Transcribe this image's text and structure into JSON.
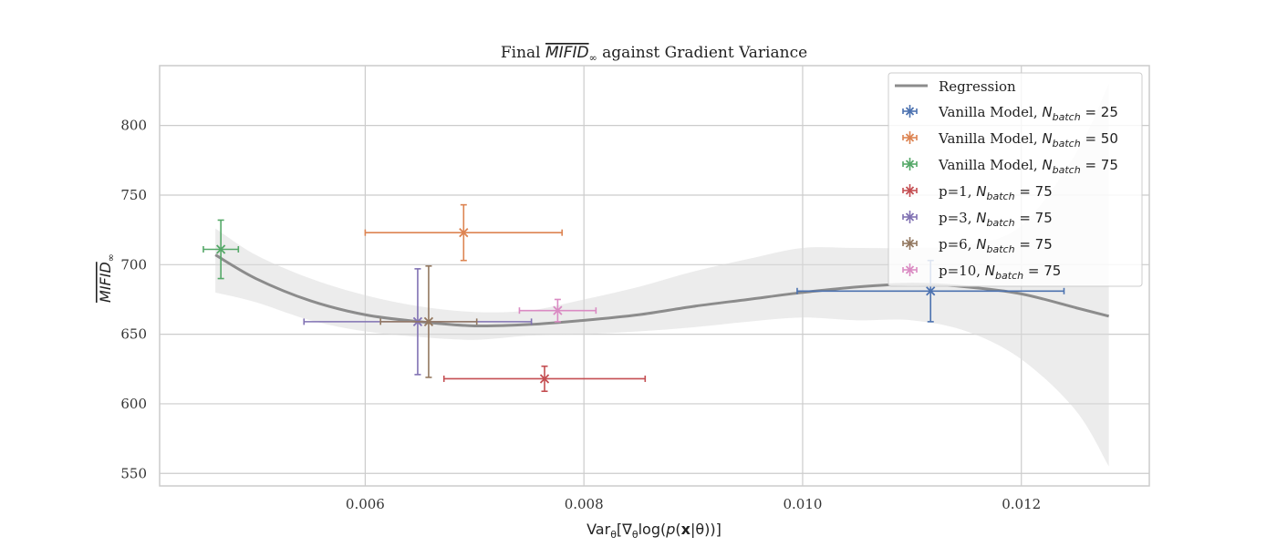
{
  "chart_data": {
    "type": "scatter",
    "title": "Final MIFID∞ against Gradient Variance",
    "title_parts": {
      "prefix": "Final ",
      "math": "MIFID",
      "sub": "∞",
      "suffix": " against Gradient Variance"
    },
    "xlabel": "Var_θ[∇_θ log(p(x|θ))]",
    "xlabel_parts": {
      "a": "Var",
      "a_sub": "θ",
      "b": "[∇",
      "b_sub": "θ",
      "c": "log(",
      "d": "p",
      "e": "(",
      "f": "x",
      "g": "|θ))]"
    },
    "ylabel": "MIFID∞",
    "ylabel_parts": {
      "math": "MIFID",
      "sub": "∞"
    },
    "xlim": [
      0.00412,
      0.01317
    ],
    "ylim": [
      541,
      843
    ],
    "x_ticks": [
      0.006,
      0.008,
      0.01,
      0.012
    ],
    "x_tick_labels": [
      "0.006",
      "0.008",
      "0.010",
      "0.012"
    ],
    "y_ticks": [
      550,
      600,
      650,
      700,
      750,
      800
    ],
    "y_tick_labels": [
      "550",
      "600",
      "650",
      "700",
      "750",
      "800"
    ],
    "grid": true,
    "legend_position": "top-right",
    "regression": {
      "name": "Regression",
      "color": "#8c8c8c",
      "x_range": [
        0.00463,
        0.0128
      ],
      "line": [
        [
          0.00463,
          707
        ],
        [
          0.005,
          690
        ],
        [
          0.0055,
          674
        ],
        [
          0.006,
          664
        ],
        [
          0.0065,
          659
        ],
        [
          0.007,
          656
        ],
        [
          0.0075,
          657
        ],
        [
          0.008,
          660
        ],
        [
          0.0085,
          664
        ],
        [
          0.009,
          670
        ],
        [
          0.0095,
          675
        ],
        [
          0.01,
          680
        ],
        [
          0.0105,
          684
        ],
        [
          0.011,
          686
        ],
        [
          0.0115,
          684
        ],
        [
          0.012,
          679
        ],
        [
          0.0125,
          669
        ],
        [
          0.0128,
          663
        ]
      ],
      "band_upper": [
        [
          0.00463,
          726
        ],
        [
          0.005,
          707
        ],
        [
          0.0055,
          690
        ],
        [
          0.006,
          678
        ],
        [
          0.0065,
          670
        ],
        [
          0.007,
          666
        ],
        [
          0.0075,
          667
        ],
        [
          0.008,
          675
        ],
        [
          0.0085,
          684
        ],
        [
          0.009,
          695
        ],
        [
          0.0095,
          704
        ],
        [
          0.01,
          712
        ],
        [
          0.0105,
          712
        ],
        [
          0.011,
          712
        ],
        [
          0.0115,
          714
        ],
        [
          0.012,
          728
        ],
        [
          0.0125,
          780
        ],
        [
          0.0128,
          830
        ]
      ],
      "band_lower": [
        [
          0.00463,
          680
        ],
        [
          0.005,
          673
        ],
        [
          0.0055,
          660
        ],
        [
          0.006,
          652
        ],
        [
          0.0065,
          648
        ],
        [
          0.007,
          646
        ],
        [
          0.0075,
          649
        ],
        [
          0.008,
          650
        ],
        [
          0.0085,
          652
        ],
        [
          0.009,
          655
        ],
        [
          0.0095,
          659
        ],
        [
          0.01,
          662
        ],
        [
          0.0105,
          660
        ],
        [
          0.011,
          660
        ],
        [
          0.0115,
          652
        ],
        [
          0.012,
          632
        ],
        [
          0.0125,
          595
        ],
        [
          0.0128,
          555
        ]
      ]
    },
    "series": [
      {
        "name": "Vanilla Model, N_batch = 25",
        "label": "Vanilla Model, ",
        "nbatch": "25",
        "color": "#4c72b0",
        "x": 0.01117,
        "y": 681,
        "xerr": 0.00122,
        "yerr": 22
      },
      {
        "name": "Vanilla Model, N_batch = 50",
        "label": "Vanilla Model, ",
        "nbatch": "50",
        "color": "#dd8452",
        "x": 0.0069,
        "y": 723,
        "xerr": 0.0009,
        "yerr": 20
      },
      {
        "name": "Vanilla Model, N_batch = 75",
        "label": "Vanilla Model, ",
        "nbatch": "75",
        "color": "#55a868",
        "x": 0.00468,
        "y": 711,
        "xerr": 0.00016,
        "yerr": 21
      },
      {
        "name": "p=1, N_batch = 75",
        "label": "p=1, ",
        "nbatch": "75",
        "color": "#c44e52",
        "x": 0.00764,
        "y": 618,
        "xerr": 0.00092,
        "yerr": 9
      },
      {
        "name": "p=3, N_batch = 75",
        "label": "p=3, ",
        "nbatch": "75",
        "color": "#8172b3",
        "x": 0.00648,
        "y": 659,
        "xerr": 0.00104,
        "yerr": 38
      },
      {
        "name": "p=6, N_batch = 75",
        "label": "p=6, ",
        "nbatch": "75",
        "color": "#937860",
        "x": 0.00658,
        "y": 659,
        "xerr": 0.00044,
        "yerr": 40
      },
      {
        "name": "p=10, N_batch = 75",
        "label": "p=10, ",
        "nbatch": "75",
        "color": "#da8bc3",
        "x": 0.00776,
        "y": 667,
        "xerr": 0.00035,
        "yerr": 8
      }
    ]
  }
}
